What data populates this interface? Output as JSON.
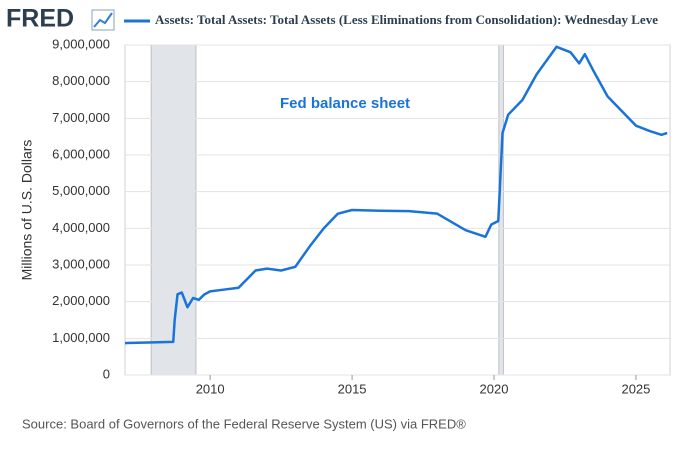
{
  "chart_data": {
    "type": "line",
    "brand": "FRED",
    "title": "Assets: Total Assets: Total Assets (Less Eliminations from Consolidation): Wednesday Leve",
    "annotation": "Fed balance sheet",
    "y_label": "Millions of U.S. Dollars",
    "source": "Source: Board of Governors of the Federal Reserve System (US) via FRED®",
    "x": [
      2007.0,
      2008.0,
      2008.7,
      2008.75,
      2008.85,
      2009.0,
      2009.2,
      2009.4,
      2009.6,
      2009.8,
      2010.0,
      2010.5,
      2011.0,
      2011.6,
      2012.0,
      2012.5,
      2013.0,
      2013.5,
      2014.0,
      2014.5,
      2015.0,
      2016.0,
      2017.0,
      2018.0,
      2019.0,
      2019.7,
      2019.9,
      2020.15,
      2020.3,
      2020.5,
      2021.0,
      2021.5,
      2022.2,
      2022.7,
      2023.0,
      2023.2,
      2023.5,
      2024.0,
      2024.5,
      2025.0,
      2025.5,
      2025.9,
      2026.1
    ],
    "series": [
      {
        "name": "Assets: Total Assets: Total Assets (Less Eliminations from Consolidation): Wednesday Leve",
        "color": "#1a73d9",
        "values": [
          870000,
          890000,
          905000,
          1500000,
          2200000,
          2250000,
          1850000,
          2100000,
          2050000,
          2200000,
          2280000,
          2330000,
          2380000,
          2850000,
          2900000,
          2850000,
          2950000,
          3500000,
          4000000,
          4400000,
          4500000,
          4480000,
          4470000,
          4400000,
          3950000,
          3770000,
          4100000,
          4200000,
          6600000,
          7100000,
          7500000,
          8200000,
          8950000,
          8800000,
          8500000,
          8750000,
          8300000,
          7600000,
          7200000,
          6800000,
          6650000,
          6550000,
          6600000
        ]
      }
    ],
    "recessions": [
      [
        2007.92,
        2009.5
      ],
      [
        2020.17,
        2020.33
      ]
    ],
    "xlim": [
      2007.0,
      2026.2
    ],
    "xticks": [
      2010,
      2015,
      2020,
      2025
    ],
    "ylim": [
      0,
      9000000
    ],
    "yticks": [
      0,
      {
        "value": 1000000,
        "label": "1,000,000"
      },
      {
        "value": 2000000,
        "label": "2,000,000"
      },
      {
        "value": 3000000,
        "label": "3,000,000"
      },
      {
        "value": 4000000,
        "label": "4,000,000"
      },
      {
        "value": 5000000,
        "label": "5,000,000"
      },
      {
        "value": 6000000,
        "label": "6,000,000"
      },
      {
        "value": 7000000,
        "label": "7,000,000"
      },
      {
        "value": 8000000,
        "label": "8,000,000"
      },
      {
        "value": 9000000,
        "label": "9,000,000"
      }
    ],
    "grid": true
  }
}
